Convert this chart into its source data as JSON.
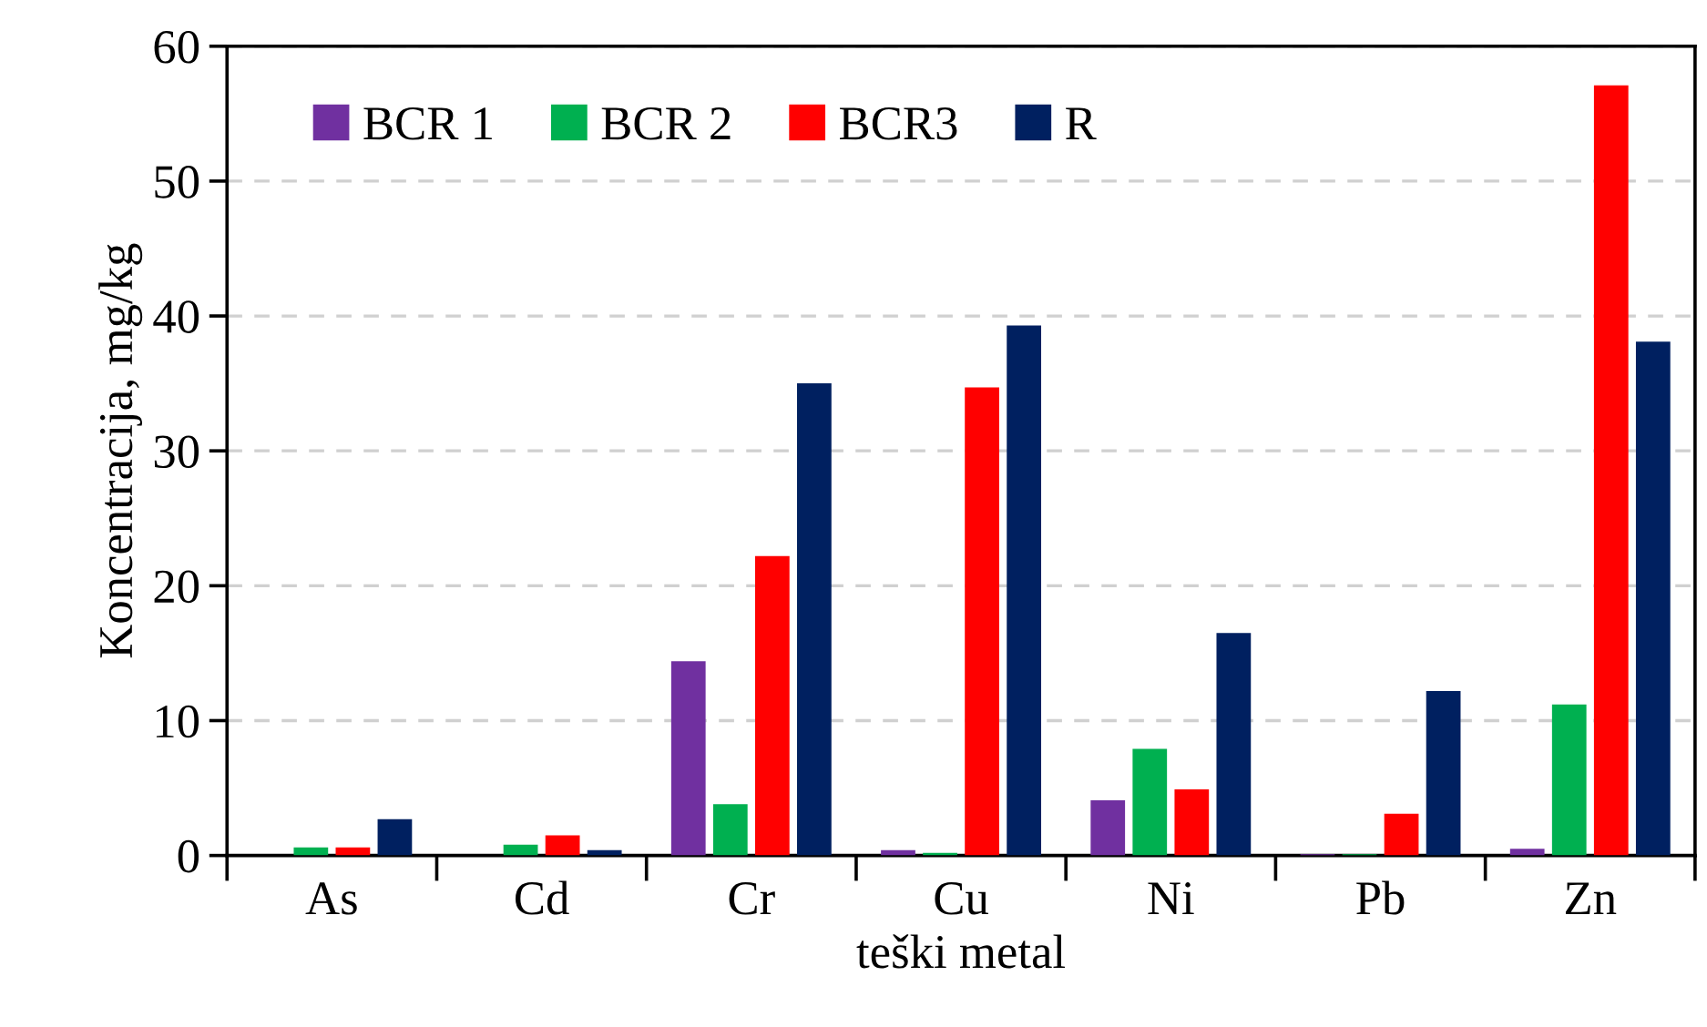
{
  "chart_data": {
    "type": "bar",
    "xlabel": "teški metal",
    "ylabel": "Koncentracija, mg/kg",
    "categories": [
      "As",
      "Cd",
      "Cr",
      "Cu",
      "Ni",
      "Pb",
      "Zn"
    ],
    "series": [
      {
        "name": "BCR 1",
        "color": "#7030a0",
        "values": [
          0,
          0,
          14.4,
          0.4,
          4.1,
          0.1,
          0.5
        ]
      },
      {
        "name": "BCR 2",
        "color": "#00b050",
        "values": [
          0.6,
          0.8,
          3.8,
          0.2,
          7.9,
          0.1,
          11.2
        ]
      },
      {
        "name": "BCR3",
        "color": "#ff0000",
        "values": [
          0.6,
          1.5,
          22.2,
          34.7,
          4.9,
          3.1,
          57.1
        ]
      },
      {
        "name": "R",
        "color": "#002060",
        "values": [
          2.7,
          0.4,
          35,
          39.3,
          16.5,
          12.2,
          38.1
        ]
      }
    ],
    "ylim": [
      0,
      60
    ],
    "yticks": [
      0,
      10,
      20,
      30,
      40,
      50,
      60
    ],
    "grid": "y",
    "legend": "top left"
  }
}
